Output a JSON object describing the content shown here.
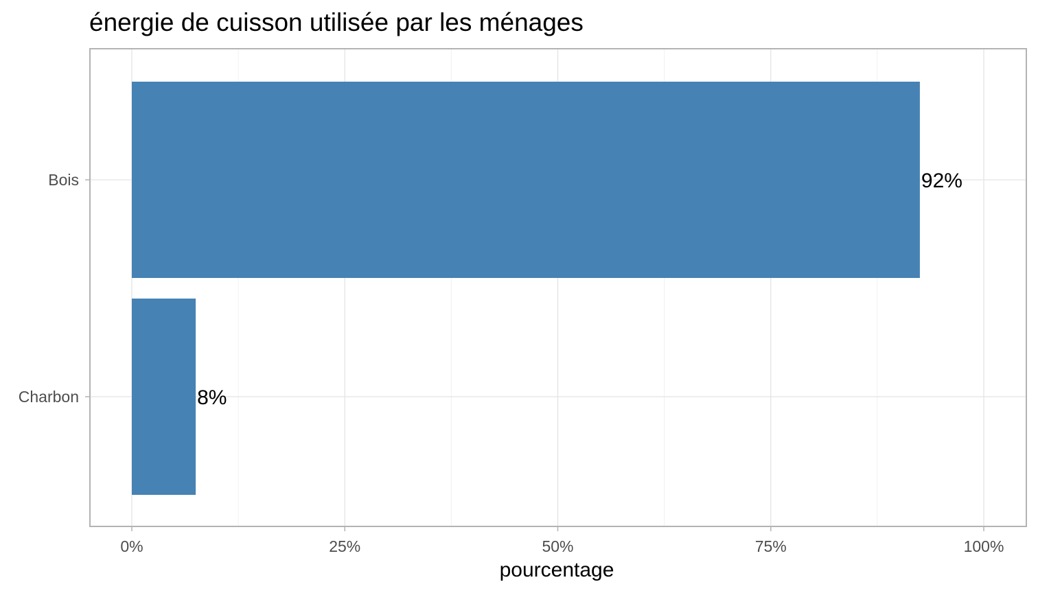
{
  "chart_data": {
    "type": "bar",
    "orientation": "horizontal",
    "title": "énergie de cuisson utilisée par les ménages",
    "xlabel": "pourcentage",
    "ylabel": "",
    "categories": [
      "Bois",
      "Charbon"
    ],
    "values": [
      92.5,
      7.5
    ],
    "data_labels": [
      "92%",
      "8%"
    ],
    "xlim": [
      0,
      100
    ],
    "x_ticks": [
      0,
      25,
      50,
      75,
      100
    ],
    "x_tick_labels": [
      "0%",
      "25%",
      "50%",
      "75%",
      "100%"
    ],
    "grid": true,
    "bar_color": "#4682B4"
  }
}
